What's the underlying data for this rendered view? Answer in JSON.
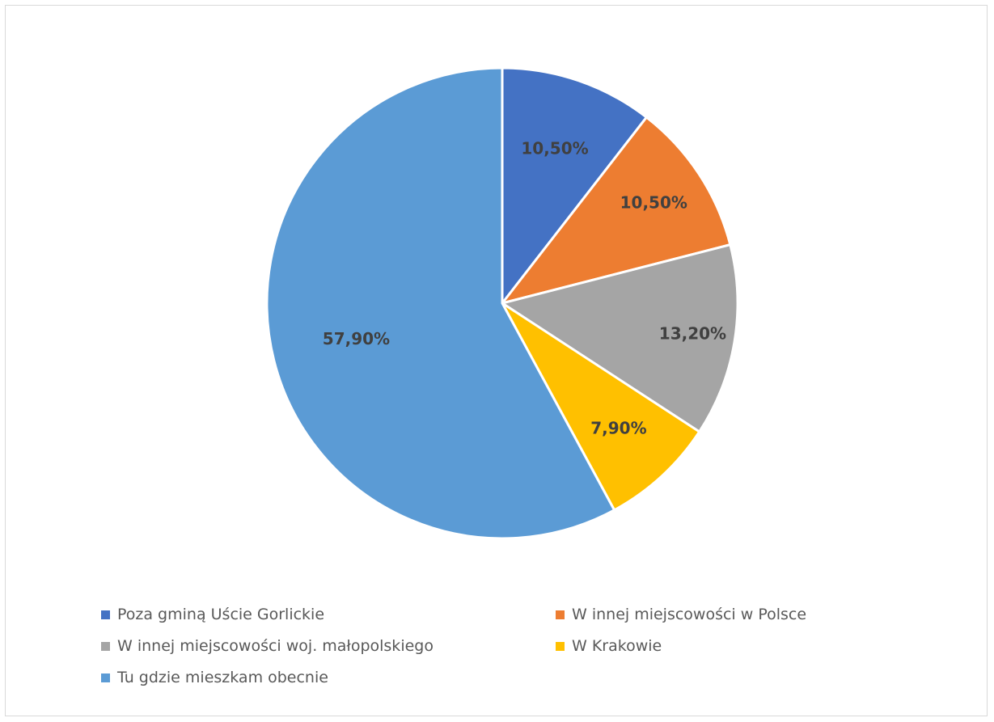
{
  "chart_data": {
    "type": "pie",
    "title": "",
    "start_angle_deg": 0,
    "direction": "clockwise",
    "legend_position": "bottom",
    "slices": [
      {
        "label": "Poza gminą Uście Gorlickie",
        "value": 10.5,
        "display": "10,50%",
        "color": "#4472c4"
      },
      {
        "label": "W innej miejscowości w Polsce",
        "value": 10.5,
        "display": "10,50%",
        "color": "#ed7d31"
      },
      {
        "label": "W innej miejscowości woj. małopolskiego",
        "value": 13.2,
        "display": "13,20%",
        "color": "#a5a5a5"
      },
      {
        "label": "W Krakowie",
        "value": 7.9,
        "display": "7,90%",
        "color": "#ffc000"
      },
      {
        "label": "Tu gdzie mieszkam obecnie",
        "value": 57.9,
        "display": "57,90%",
        "color": "#5b9bd5"
      }
    ]
  }
}
